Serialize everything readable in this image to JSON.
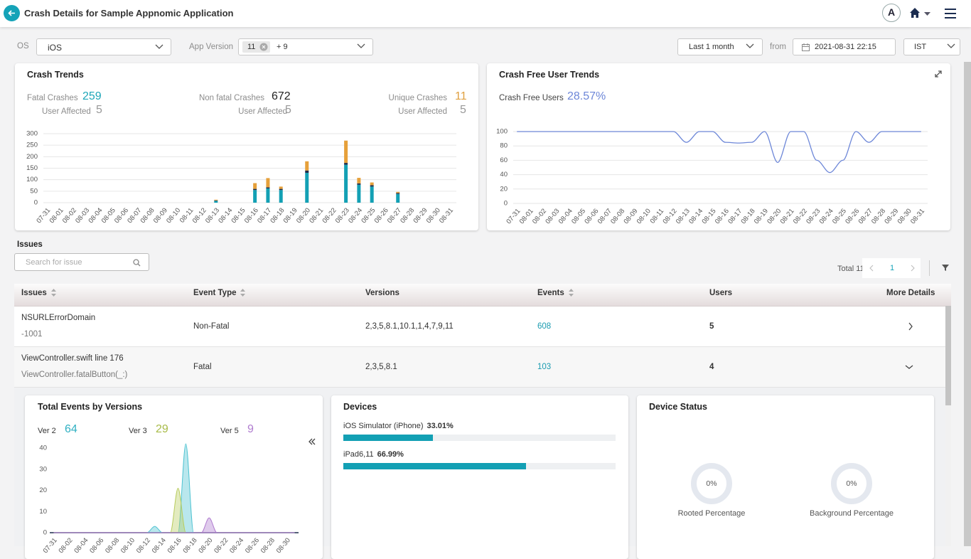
{
  "header": {
    "title": "Crash Details for Sample Appnomic Application",
    "avatar": "A"
  },
  "filters": {
    "os_label": "OS",
    "os": "iOS",
    "app_version_label": "App Version",
    "version": "11",
    "version_more": "+ 9",
    "range": "Last 1 month",
    "from_label": "from",
    "from": "2021-08-31 22:15",
    "timezone": "IST"
  },
  "crash_trends": {
    "title": "Crash Trends",
    "stats": [
      {
        "label": "Fatal Crashes",
        "value": 259,
        "users_label": "User Affected",
        "users": 5
      },
      {
        "label": "Non fatal Crashes",
        "value": 672,
        "users_label": "User Affected",
        "users": 5
      },
      {
        "label": "Unique Crashes",
        "value": 11,
        "users_label": "User Affected",
        "users": 5
      }
    ],
    "chart": {
      "type": "bar",
      "stacked": true,
      "categories": [
        "07-31",
        "08-01",
        "08-02",
        "08-03",
        "08-04",
        "08-05",
        "08-06",
        "08-07",
        "08-08",
        "08-09",
        "08-10",
        "08-11",
        "08-12",
        "08-13",
        "08-14",
        "08-15",
        "08-16",
        "08-17",
        "08-18",
        "08-19",
        "08-20",
        "08-21",
        "08-22",
        "08-23",
        "08-24",
        "08-25",
        "08-26",
        "08-27",
        "08-28",
        "08-29",
        "08-30",
        "08-31"
      ],
      "series": [
        {
          "color": "#13a0b4",
          "values": [
            0,
            0,
            0,
            0,
            0,
            0,
            0,
            0,
            0,
            0,
            0,
            0,
            0,
            8,
            0,
            0,
            55,
            62,
            55,
            0,
            130,
            0,
            0,
            165,
            78,
            70,
            0,
            38,
            0,
            0,
            0,
            0
          ]
        },
        {
          "color": "#1c2b4a",
          "values": [
            0,
            0,
            0,
            0,
            0,
            0,
            0,
            0,
            0,
            0,
            0,
            0,
            0,
            2,
            0,
            0,
            5,
            5,
            5,
            0,
            10,
            0,
            0,
            8,
            6,
            6,
            0,
            4,
            0,
            0,
            0,
            0
          ]
        },
        {
          "color": "#e6a03a",
          "values": [
            0,
            0,
            0,
            0,
            0,
            0,
            0,
            0,
            0,
            0,
            0,
            0,
            0,
            3,
            0,
            0,
            25,
            40,
            10,
            0,
            40,
            0,
            0,
            97,
            24,
            12,
            0,
            5,
            0,
            0,
            0,
            0
          ]
        }
      ],
      "ylim": [
        0,
        300
      ],
      "yticks": [
        0,
        50,
        100,
        150,
        200,
        250,
        300
      ],
      "grid": true
    }
  },
  "crash_free": {
    "title": "Crash Free User Trends",
    "stat_label": "Crash Free Users",
    "stat": "28.57%",
    "chart": {
      "type": "line",
      "categories": [
        "07-31",
        "08-01",
        "08-02",
        "08-03",
        "08-04",
        "08-05",
        "08-06",
        "08-07",
        "08-08",
        "08-09",
        "08-10",
        "08-11",
        "08-12",
        "08-13",
        "08-14",
        "08-15",
        "08-16",
        "08-17",
        "08-18",
        "08-19",
        "08-20",
        "08-21",
        "08-22",
        "08-23",
        "08-24",
        "08-25",
        "08-26",
        "08-27",
        "08-28",
        "08-29",
        "08-30",
        "08-31"
      ],
      "series": [
        {
          "color": "#6d87d8",
          "values": [
            100,
            100,
            100,
            100,
            100,
            100,
            100,
            100,
            100,
            100,
            100,
            100,
            100,
            85,
            100,
            100,
            85,
            84,
            85,
            100,
            57,
            100,
            100,
            60,
            43,
            60,
            100,
            85,
            100,
            100,
            100,
            100
          ]
        }
      ],
      "ylim": [
        0,
        100
      ],
      "yticks": [
        0,
        20,
        40,
        60,
        80,
        100
      ],
      "grid": true
    }
  },
  "issues": {
    "title": "Issues",
    "search_placeholder": "Search for issue",
    "total": "Total 11",
    "page": "1",
    "columns": [
      "Issues",
      "Event Type",
      "Versions",
      "Events",
      "Users",
      "More Details"
    ],
    "rows": [
      [
        "NSURLErrorDomain",
        "-1001",
        "Non-Fatal",
        "2,3,5,8.1,10.1,1,4,7,9,11",
        "608",
        "5"
      ],
      [
        "ViewController.swift line 176",
        "ViewController.fatalButton(_:)",
        "Fatal",
        "2,3,5,8.1",
        "103",
        "4"
      ]
    ]
  },
  "versions": {
    "title": "Total Events by Versions",
    "chart": {
      "type": "area",
      "categories": [
        "07-31",
        null,
        "08-02",
        null,
        "08-04",
        null,
        "08-06",
        null,
        "08-08",
        null,
        "08-10",
        null,
        "08-12",
        null,
        "08-14",
        null,
        "08-16",
        null,
        "08-18",
        null,
        "08-20",
        null,
        "08-22",
        null,
        "08-24",
        null,
        "08-26",
        null,
        "08-28",
        null,
        "08-30",
        null
      ],
      "series": [
        {
          "name": "Ver 2",
          "total": 64,
          "color": "#4fc3d2",
          "values": [
            0,
            0,
            0,
            0,
            0,
            0,
            0,
            0,
            0,
            0,
            0,
            0,
            0,
            3,
            0,
            0,
            0,
            42,
            0,
            0,
            0,
            0,
            0,
            0,
            0,
            0,
            0,
            0,
            0,
            0,
            0,
            0
          ]
        },
        {
          "name": "Ver 3",
          "total": 29,
          "color": "#b9cc5e",
          "values": [
            0,
            0,
            0,
            0,
            0,
            0,
            0,
            0,
            0,
            0,
            0,
            0,
            0,
            0,
            0,
            0,
            21,
            0,
            0,
            0,
            0,
            0,
            0,
            0,
            0,
            0,
            0,
            0,
            0,
            0,
            0,
            0
          ]
        },
        {
          "name": "Ver 5",
          "total": 9,
          "color": "#b07ccf",
          "values": [
            0,
            0,
            0,
            0,
            0,
            0,
            0,
            0,
            0,
            0,
            0,
            0,
            0,
            0,
            0,
            0,
            0,
            0,
            0,
            0,
            7,
            0,
            0,
            0,
            0,
            0,
            0,
            0,
            0,
            0,
            0,
            0
          ]
        }
      ],
      "ylim": [
        0,
        40
      ],
      "yticks": [
        0,
        10,
        20,
        30,
        40
      ],
      "grid": false
    }
  },
  "devices": {
    "title": "Devices",
    "xlim": [
      0,
      100
    ],
    "items": [
      {
        "name": "iOS Simulator (iPhone)",
        "value": 33.01,
        "value_label": "33.01%"
      },
      {
        "name": "iPad6,11",
        "value": 66.99,
        "value_label": "66.99%"
      }
    ]
  },
  "device_status": {
    "title": "Device Status",
    "items": [
      {
        "value": "0%",
        "label": "Rooted Percentage"
      },
      {
        "value": "0%",
        "label": "Background Percentage"
      }
    ]
  }
}
